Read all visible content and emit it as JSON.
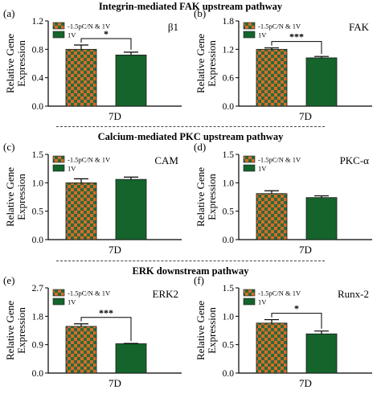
{
  "sections": [
    {
      "title": "Integrin-mediated FAK upstream pathway"
    },
    {
      "title": "Calcium-mediated PKC upstream pathway"
    },
    {
      "title": "ERK downstream pathway"
    }
  ],
  "colors": {
    "check_a": "#d86c28",
    "check_b": "#2c6a3a",
    "solid": "#14642c"
  },
  "chart_data": [
    {
      "panel_label": "(a)",
      "type": "bar",
      "gene": "β1",
      "xlabel": "7D",
      "ylabel": [
        "Relative Gene",
        "Expression"
      ],
      "ylim": [
        0,
        1.2
      ],
      "yticks": [
        "0.0",
        "0.4",
        "0.8",
        "1.2"
      ],
      "categories": [
        "7D"
      ],
      "series": [
        {
          "name": "-1.5pC/N & 1V",
          "pattern": "checker",
          "values": [
            0.8
          ],
          "errors": [
            0.06
          ]
        },
        {
          "name": "1V",
          "pattern": "solid",
          "values": [
            0.72
          ],
          "errors": [
            0.04
          ]
        }
      ],
      "significance": "*",
      "legend": "top-left"
    },
    {
      "panel_label": "(b)",
      "type": "bar",
      "gene": "FAK",
      "xlabel": "7D",
      "ylabel": [
        "Relative Gene",
        "Expression"
      ],
      "ylim": [
        0,
        1.8
      ],
      "yticks": [
        "0.0",
        "0.6",
        "1.2",
        "1.8"
      ],
      "categories": [
        "7D"
      ],
      "series": [
        {
          "name": "-1.5pC/N & 1V",
          "pattern": "checker",
          "values": [
            1.2
          ],
          "errors": [
            0.03
          ]
        },
        {
          "name": "1V",
          "pattern": "solid",
          "values": [
            1.02
          ],
          "errors": [
            0.03
          ]
        }
      ],
      "significance": "***",
      "legend": "top-left"
    },
    {
      "panel_label": "(c)",
      "type": "bar",
      "gene": "CAM",
      "xlabel": "7D",
      "ylabel": [
        "Relative Gene",
        "Expression"
      ],
      "ylim": [
        0,
        1.5
      ],
      "yticks": [
        "0.0",
        "0.5",
        "1.0",
        "1.5"
      ],
      "categories": [
        "7D"
      ],
      "series": [
        {
          "name": "-1.5pC/N & 1V",
          "pattern": "checker",
          "values": [
            1.0
          ],
          "errors": [
            0.07
          ]
        },
        {
          "name": "1V",
          "pattern": "solid",
          "values": [
            1.06
          ],
          "errors": [
            0.04
          ]
        }
      ],
      "significance": "",
      "legend": "top-left"
    },
    {
      "panel_label": "(d)",
      "type": "bar",
      "gene": "PKC-α",
      "xlabel": "7D",
      "ylabel": [
        "Relative Gene",
        "Expression"
      ],
      "ylim": [
        0,
        1.5
      ],
      "yticks": [
        "0.0",
        "0.5",
        "1.0",
        "1.5"
      ],
      "categories": [
        "7D"
      ],
      "series": [
        {
          "name": "-1.5pC/N & 1V",
          "pattern": "checker",
          "values": [
            0.81
          ],
          "errors": [
            0.05
          ]
        },
        {
          "name": "1V",
          "pattern": "solid",
          "values": [
            0.74
          ],
          "errors": [
            0.03
          ]
        }
      ],
      "significance": "",
      "legend": "top-left"
    },
    {
      "panel_label": "(e)",
      "type": "bar",
      "gene": "ERK2",
      "xlabel": "7D",
      "ylabel": [
        "Relative Gene",
        "Expression"
      ],
      "ylim": [
        0,
        2.7
      ],
      "yticks": [
        "0.0",
        "0.9",
        "1.8",
        "2.7"
      ],
      "categories": [
        "7D"
      ],
      "series": [
        {
          "name": "-1.5pC/N & 1V",
          "pattern": "checker",
          "values": [
            1.48
          ],
          "errors": [
            0.08
          ]
        },
        {
          "name": "1V",
          "pattern": "solid",
          "values": [
            0.93
          ],
          "errors": [
            0.01
          ]
        }
      ],
      "significance": "***",
      "legend": "top-left"
    },
    {
      "panel_label": "(f)",
      "type": "bar",
      "gene": "Runx-2",
      "xlabel": "7D",
      "ylabel": [
        "Relative Gene",
        "Expression"
      ],
      "ylim": [
        0,
        1.5
      ],
      "yticks": [
        "0.0",
        "0.5",
        "1.0",
        "1.5"
      ],
      "categories": [
        "7D"
      ],
      "series": [
        {
          "name": "-1.5pC/N & 1V",
          "pattern": "checker",
          "values": [
            0.88
          ],
          "errors": [
            0.06
          ]
        },
        {
          "name": "1V",
          "pattern": "solid",
          "values": [
            0.69
          ],
          "errors": [
            0.05
          ]
        }
      ],
      "significance": "*",
      "legend": "top-left"
    }
  ]
}
